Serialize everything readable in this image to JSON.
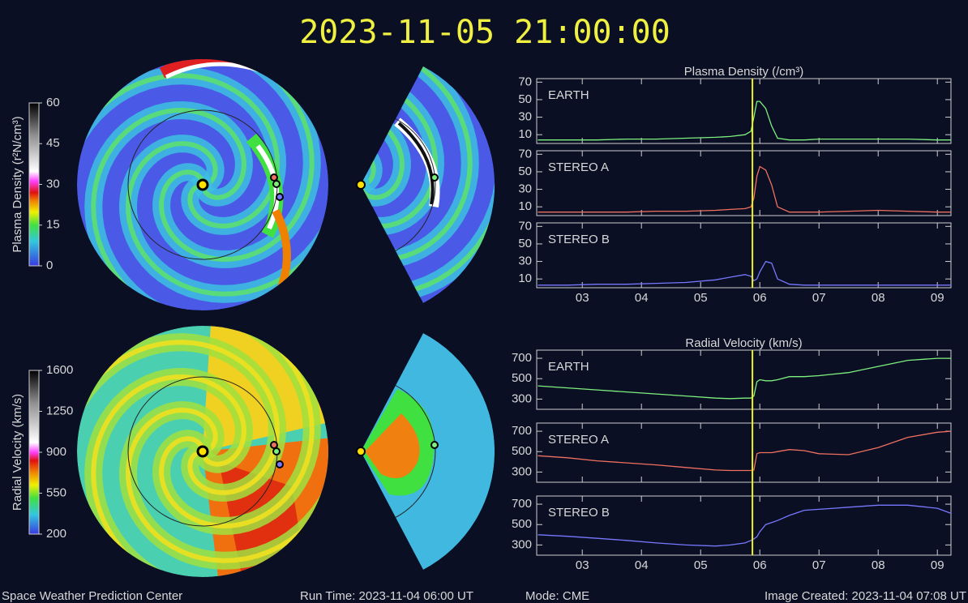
{
  "header": {
    "title": "2023-11-05 21:00:00"
  },
  "footer": {
    "left": "Space Weather Prediction Center",
    "run_time": "Run Time: 2023-11-04 06:00 UT",
    "mode": "Mode: CME",
    "created": "Image Created: 2023-11-04 07:08 UT"
  },
  "colorbars": [
    {
      "label": "Plasma Density (r²N/cm³)",
      "range": [
        0,
        60
      ],
      "ticks": [
        0,
        15,
        30,
        45,
        60
      ]
    },
    {
      "label": "Radial Velocity (km/s)",
      "range": [
        200,
        1600
      ],
      "ticks": [
        200,
        550,
        900,
        1250,
        1600
      ]
    }
  ],
  "marker_x": 5.875,
  "chart_data": [
    {
      "type": "line",
      "title": "Plasma Density (/cm³)",
      "xlim": [
        2.23,
        9.23
      ],
      "ylim": [
        0,
        74
      ],
      "yticks": [
        10,
        30,
        50,
        70
      ],
      "x": [
        2.25,
        2.75,
        3.25,
        3.75,
        4.25,
        4.75,
        5.25,
        5.5,
        5.75,
        5.85,
        5.9,
        5.95,
        6.0,
        6.1,
        6.2,
        6.3,
        6.5,
        6.75,
        7.0,
        7.5,
        8.0,
        8.5,
        9.0,
        9.23
      ],
      "series": [
        {
          "name": "EARTH",
          "color": "#7ef07e",
          "values": [
            4,
            4,
            4,
            5,
            5,
            6,
            7,
            8,
            10,
            14,
            30,
            48,
            48,
            40,
            20,
            6,
            4,
            4,
            5,
            5,
            5,
            5,
            4,
            4
          ]
        }
      ]
    },
    {
      "type": "line",
      "xlim": [
        2.23,
        9.23
      ],
      "ylim": [
        0,
        74
      ],
      "yticks": [
        10,
        30,
        50,
        70
      ],
      "x": [
        2.25,
        2.75,
        3.25,
        3.75,
        4.25,
        4.75,
        5.25,
        5.5,
        5.75,
        5.85,
        5.9,
        5.95,
        6.0,
        6.1,
        6.2,
        6.3,
        6.5,
        6.75,
        7.0,
        7.5,
        8.0,
        8.5,
        9.0,
        9.23
      ],
      "series": [
        {
          "name": "STEREO A",
          "color": "#f07060",
          "values": [
            4,
            4,
            4,
            4,
            5,
            5,
            6,
            7,
            8,
            10,
            20,
            45,
            56,
            52,
            35,
            10,
            4,
            4,
            4,
            5,
            6,
            5,
            4,
            4
          ]
        }
      ]
    },
    {
      "type": "line",
      "xlim": [
        2.23,
        9.23
      ],
      "ylim": [
        0,
        74
      ],
      "yticks": [
        10,
        30,
        50,
        70
      ],
      "xticks": [
        {
          "value": 3,
          "label": "03"
        },
        {
          "value": 4,
          "label": "04"
        },
        {
          "value": 5,
          "label": "05"
        },
        {
          "value": 6,
          "label": "06"
        },
        {
          "value": 7,
          "label": "07"
        },
        {
          "value": 8,
          "label": "08"
        },
        {
          "value": 9,
          "label": "09"
        }
      ],
      "x": [
        2.25,
        2.75,
        3.25,
        3.75,
        4.25,
        4.75,
        5.25,
        5.5,
        5.75,
        5.85,
        5.9,
        5.95,
        6.0,
        6.1,
        6.2,
        6.3,
        6.5,
        6.75,
        7.0,
        7.5,
        8.0,
        8.5,
        9.0,
        9.23
      ],
      "series": [
        {
          "name": "STEREO B",
          "color": "#7878ff",
          "values": [
            3,
            3,
            4,
            4,
            5,
            6,
            9,
            12,
            15,
            13,
            8,
            10,
            18,
            30,
            28,
            10,
            4,
            3,
            3,
            3,
            3,
            3,
            3,
            3
          ]
        }
      ]
    },
    {
      "type": "line",
      "title": "Radial Velocity (km/s)",
      "xlim": [
        2.23,
        9.23
      ],
      "ylim": [
        200,
        780
      ],
      "yticks": [
        300,
        500,
        700
      ],
      "x": [
        2.25,
        2.75,
        3.25,
        3.75,
        4.25,
        4.75,
        5.25,
        5.5,
        5.75,
        5.85,
        5.9,
        5.95,
        6.0,
        6.1,
        6.2,
        6.3,
        6.5,
        6.75,
        7.0,
        7.5,
        8.0,
        8.5,
        9.0,
        9.23
      ],
      "series": [
        {
          "name": "EARTH",
          "color": "#7ef07e",
          "values": [
            430,
            410,
            390,
            370,
            350,
            330,
            310,
            305,
            310,
            310,
            330,
            470,
            490,
            480,
            480,
            490,
            520,
            520,
            530,
            560,
            620,
            680,
            700,
            700
          ]
        }
      ]
    },
    {
      "type": "line",
      "xlim": [
        2.23,
        9.23
      ],
      "ylim": [
        200,
        780
      ],
      "yticks": [
        300,
        500,
        700
      ],
      "x": [
        2.25,
        2.75,
        3.25,
        3.75,
        4.25,
        4.75,
        5.25,
        5.5,
        5.75,
        5.85,
        5.9,
        5.95,
        6.0,
        6.1,
        6.2,
        6.3,
        6.5,
        6.75,
        7.0,
        7.5,
        8.0,
        8.5,
        9.0,
        9.23
      ],
      "series": [
        {
          "name": "STEREO A",
          "color": "#f07060",
          "values": [
            460,
            440,
            410,
            390,
            370,
            345,
            320,
            315,
            315,
            315,
            320,
            480,
            490,
            490,
            490,
            500,
            520,
            510,
            480,
            470,
            540,
            640,
            690,
            700
          ]
        }
      ]
    },
    {
      "type": "line",
      "xlim": [
        2.23,
        9.23
      ],
      "ylim": [
        200,
        780
      ],
      "yticks": [
        300,
        500,
        700
      ],
      "xticks": [
        {
          "value": 3,
          "label": "03"
        },
        {
          "value": 4,
          "label": "04"
        },
        {
          "value": 5,
          "label": "05"
        },
        {
          "value": 6,
          "label": "06"
        },
        {
          "value": 7,
          "label": "07"
        },
        {
          "value": 8,
          "label": "08"
        },
        {
          "value": 9,
          "label": "09"
        }
      ],
      "x": [
        2.25,
        2.75,
        3.25,
        3.75,
        4.25,
        4.75,
        5.25,
        5.5,
        5.75,
        5.85,
        5.9,
        5.95,
        6.0,
        6.1,
        6.2,
        6.3,
        6.5,
        6.75,
        7.0,
        7.5,
        8.0,
        8.5,
        9.0,
        9.23
      ],
      "series": [
        {
          "name": "STEREO B",
          "color": "#7878ff",
          "values": [
            400,
            385,
            365,
            345,
            320,
            300,
            290,
            300,
            320,
            345,
            360,
            380,
            430,
            500,
            520,
            540,
            590,
            640,
            650,
            670,
            690,
            690,
            660,
            610
          ]
        }
      ]
    }
  ]
}
